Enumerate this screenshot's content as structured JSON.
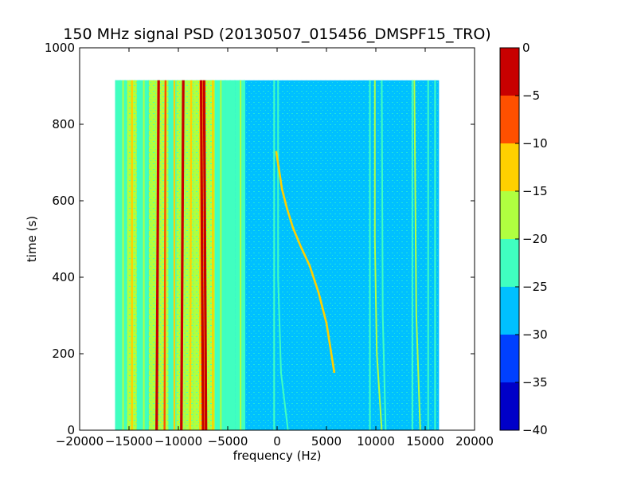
{
  "chart_data": {
    "type": "heatmap",
    "title": "150 MHz signal PSD (20130507_015456_DMSPF15_TRO)",
    "xlabel": "frequency (Hz)",
    "ylabel": "time (s)",
    "xlim": [
      -20000,
      20000
    ],
    "ylim": [
      0,
      1000
    ],
    "xticks": [
      -20000,
      -15000,
      -10000,
      -5000,
      0,
      5000,
      10000,
      15000,
      20000
    ],
    "yticks": [
      0,
      200,
      400,
      600,
      800,
      1000
    ],
    "data_extent": {
      "x": [
        -16400,
        16400
      ],
      "y": [
        0,
        915
      ]
    },
    "background_level": -27.5,
    "colorbar": {
      "levels": [
        -40,
        -35,
        -30,
        -25,
        -20,
        -15,
        -10,
        -5,
        0
      ],
      "tick_labels": [
        "-40",
        "-35",
        "-30",
        "-25",
        "-20",
        "-15",
        "-10",
        "-5",
        "0"
      ],
      "colors": [
        "#0000c8",
        "#0040ff",
        "#00c0ff",
        "#40ffc0",
        "#b0ff40",
        "#ffd000",
        "#ff5000",
        "#c80000"
      ]
    },
    "bands": [
      {
        "x": [
          -16400,
          -15200
        ],
        "level": -24
      },
      {
        "x": [
          -15200,
          -14200
        ],
        "level": -20
      },
      {
        "x": [
          -14200,
          -13000
        ],
        "level": -23
      },
      {
        "x": [
          -13000,
          -12300
        ],
        "level": -19
      },
      {
        "x": [
          -12300,
          -11000
        ],
        "level": -16
      },
      {
        "x": [
          -11000,
          -10200
        ],
        "level": -21
      },
      {
        "x": [
          -10200,
          -9300
        ],
        "level": -17
      },
      {
        "x": [
          -9300,
          -8500
        ],
        "level": -19
      },
      {
        "x": [
          -8500,
          -7900
        ],
        "level": -16
      },
      {
        "x": [
          -7900,
          -7200
        ],
        "level": -14
      },
      {
        "x": [
          -7200,
          -6300
        ],
        "level": -19
      },
      {
        "x": [
          -6300,
          -5200
        ],
        "level": -21
      },
      {
        "x": [
          -5200,
          -4200
        ],
        "level": -23
      },
      {
        "x": [
          -4200,
          -3300
        ],
        "level": -21
      }
    ],
    "lines": [
      {
        "x": [
          -15600,
          -15600
        ],
        "y": [
          0,
          915
        ],
        "level": -17
      },
      {
        "x": [
          -14700,
          -14700
        ],
        "level": -14,
        "y": [
          0,
          915
        ]
      },
      {
        "x": [
          -13500,
          -13500
        ],
        "y": [
          0,
          915
        ],
        "level": -16
      },
      {
        "x": [
          -12200,
          -12000
        ],
        "y": [
          0,
          915
        ],
        "level": -3
      },
      {
        "x": [
          -11400,
          -11300
        ],
        "y": [
          0,
          915
        ],
        "level": -9
      },
      {
        "x": [
          -10400,
          -10400
        ],
        "y": [
          0,
          915
        ],
        "level": -12
      },
      {
        "x": [
          -9700,
          -9500
        ],
        "y": [
          0,
          915
        ],
        "level": -4
      },
      {
        "x": [
          -8800,
          -8700
        ],
        "y": [
          0,
          915
        ],
        "level": -12
      },
      {
        "x": [
          -7500,
          -7700
        ],
        "y": [
          0,
          915
        ],
        "level": -1
      },
      {
        "x": [
          -7200,
          -7400
        ],
        "y": [
          0,
          915
        ],
        "level": -3
      },
      {
        "x": [
          -6500,
          -6500
        ],
        "y": [
          0,
          915
        ],
        "level": -13
      },
      {
        "x": [
          -5700,
          -5700
        ],
        "y": [
          0,
          915
        ],
        "level": -17
      },
      {
        "x": [
          -3700,
          -3700
        ],
        "y": [
          0,
          915
        ],
        "level": -18
      },
      {
        "x": [
          -3300,
          -3300
        ],
        "y": [
          0,
          915
        ],
        "level": -21
      },
      {
        "x": [
          1100,
          400,
          100,
          100
        ],
        "y": [
          0,
          150,
          400,
          915
        ],
        "level": -21
      },
      {
        "x": [
          -300,
          -300
        ],
        "y": [
          0,
          915
        ],
        "level": -23
      },
      {
        "x": [
          9400,
          9400
        ],
        "y": [
          0,
          915
        ],
        "level": -21
      },
      {
        "x": [
          10600,
          10100,
          9900,
          9900
        ],
        "y": [
          0,
          200,
          500,
          915
        ],
        "level": -19
      },
      {
        "x": [
          11000,
          10700,
          10600
        ],
        "y": [
          0,
          300,
          915
        ],
        "level": -23
      },
      {
        "x": [
          13700,
          13700
        ],
        "y": [
          0,
          915
        ],
        "level": -21
      },
      {
        "x": [
          14500,
          14100,
          13900
        ],
        "y": [
          0,
          300,
          915
        ],
        "level": -19
      },
      {
        "x": [
          15300,
          15300
        ],
        "y": [
          0,
          915
        ],
        "level": -23
      },
      {
        "x": [
          16000,
          16000
        ],
        "y": [
          0,
          915
        ],
        "level": -23
      }
    ],
    "sweep": {
      "x": [
        5800,
        5000,
        4200,
        3300,
        2400,
        1600,
        1000,
        500,
        200,
        -100
      ],
      "y": [
        150,
        280,
        360,
        430,
        480,
        530,
        580,
        630,
        680,
        730
      ],
      "level": -14
    }
  }
}
